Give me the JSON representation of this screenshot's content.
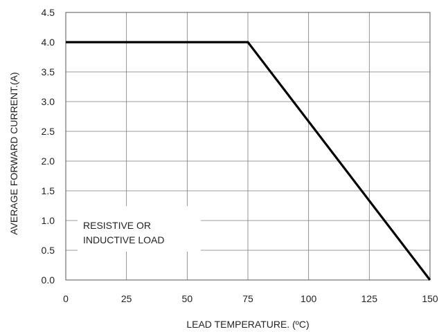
{
  "chart_data": {
    "type": "line",
    "xlabel": "LEAD TEMPERATURE. (ºC)",
    "ylabel": "AVERAGE FORWARD CURRENT.(A)",
    "xlim": [
      0,
      150
    ],
    "ylim": [
      0,
      4.5
    ],
    "xticks": [
      "0",
      "25",
      "50",
      "75",
      "100",
      "125",
      "150"
    ],
    "yticks": [
      "0.0",
      "0.5",
      "1.0",
      "1.5",
      "2.0",
      "2.5",
      "3.0",
      "3.5",
      "4.0",
      "4.5"
    ],
    "grid": true,
    "series": [
      {
        "x": [
          0,
          75,
          150
        ],
        "y": [
          4.0,
          4.0,
          0.0
        ]
      }
    ],
    "annotations": [
      "RESISTIVE OR",
      "INDUCTIVE LOAD"
    ],
    "colors": {
      "line": "#000000",
      "grid": "#7a7a7a"
    }
  }
}
